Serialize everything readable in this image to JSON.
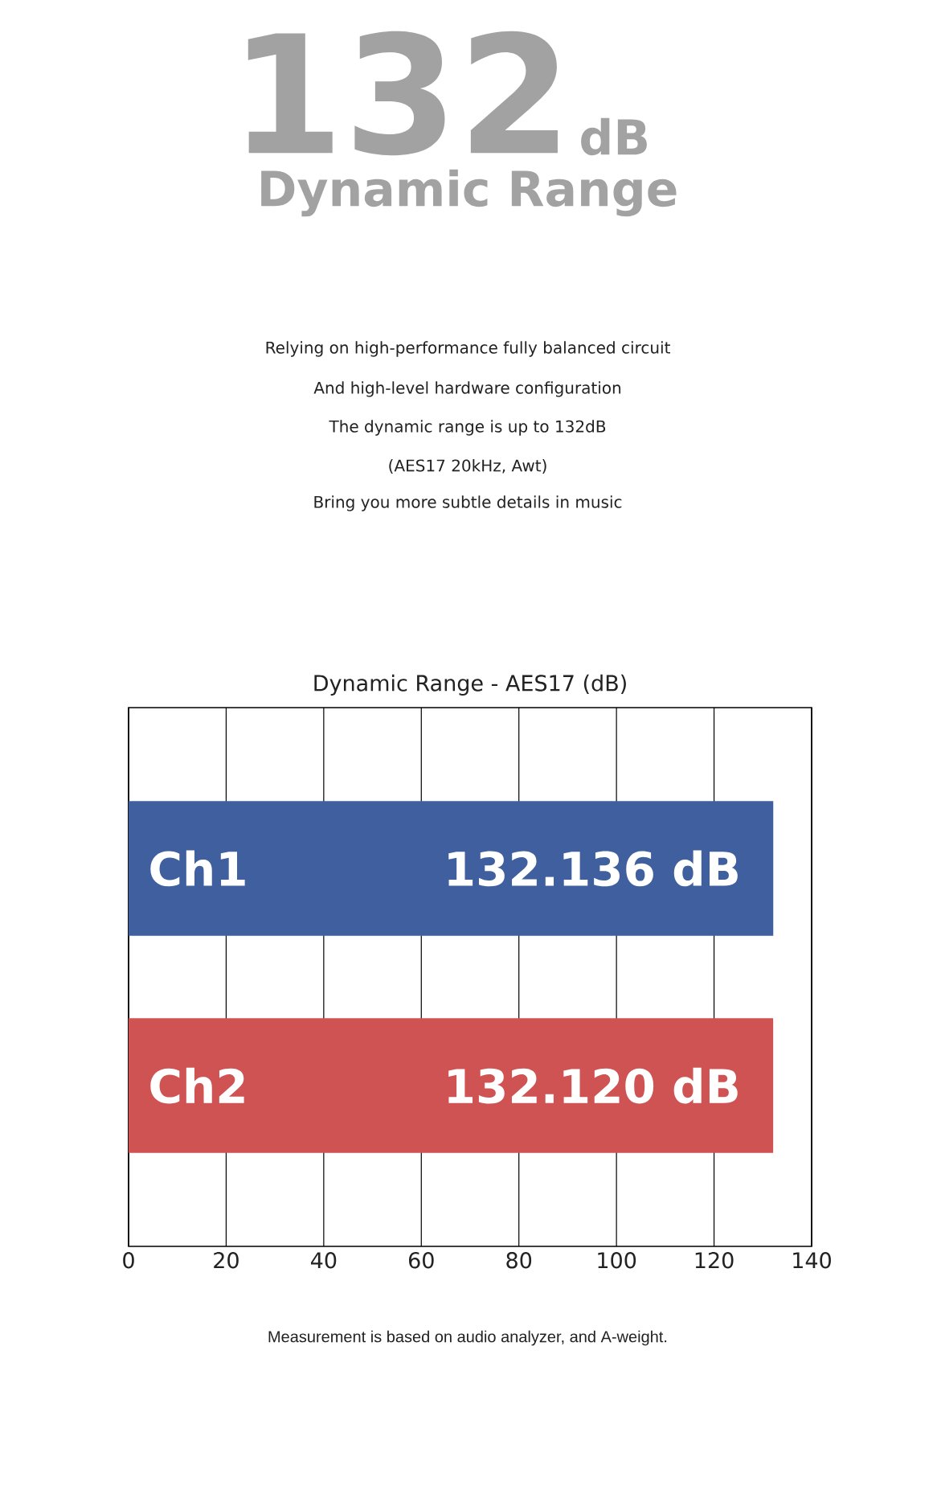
{
  "chart_data": {
    "type": "bar",
    "orientation": "horizontal",
    "title": "Dynamic Range - AES17 (dB)",
    "categories": [
      "Ch1",
      "Ch2"
    ],
    "values": [
      132.136,
      132.12
    ],
    "colors": [
      "#3f5f9f",
      "#d05353"
    ],
    "value_labels": [
      "132.136 dB",
      "132.120 dB"
    ],
    "xlim": [
      0,
      140
    ],
    "xticks": [
      0,
      20,
      40,
      60,
      80,
      100,
      120,
      140
    ],
    "grid": "x",
    "annotations": [
      "132",
      "dB",
      "Dynamic Range",
      "Relying on high-performance fully balanced circuit",
      "And high-level hardware configuration",
      "The dynamic range is up to 132dB",
      "(AES17 20kHz, Awt)",
      "Bring you more subtle details in music",
      "Measurement is based on audio analyzer, and A-weight."
    ]
  }
}
